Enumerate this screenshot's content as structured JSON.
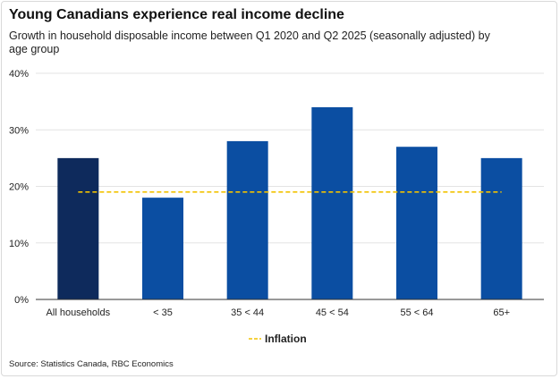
{
  "chart_data": {
    "type": "bar",
    "title": "Young Canadians experience real income decline",
    "subtitle": "Growth in household disposable income between Q1 2020 and Q2 2025 (seasonally adjusted) by age group",
    "source": "Source: Statistics Canada, RBC Economics",
    "categories": [
      "All households",
      "< 35",
      "35 < 44",
      "45 < 54",
      "55 < 64",
      "65+"
    ],
    "values": [
      25,
      18,
      28,
      34,
      27,
      25
    ],
    "reference_line": {
      "name": "Inflation",
      "value": 19
    },
    "ylim": [
      0,
      40
    ],
    "yticks": [
      0,
      10,
      20,
      30,
      40
    ],
    "ytick_labels": [
      "0%",
      "10%",
      "20%",
      "30%",
      "40%"
    ],
    "grid": true,
    "legend_position": "bottom-center",
    "colors": {
      "highlight_bar": "#0e2a5c",
      "bar": "#0b4ea2",
      "inflation_line": "#f2c200",
      "grid": "#e3e3e3",
      "axis": "#333333"
    }
  }
}
